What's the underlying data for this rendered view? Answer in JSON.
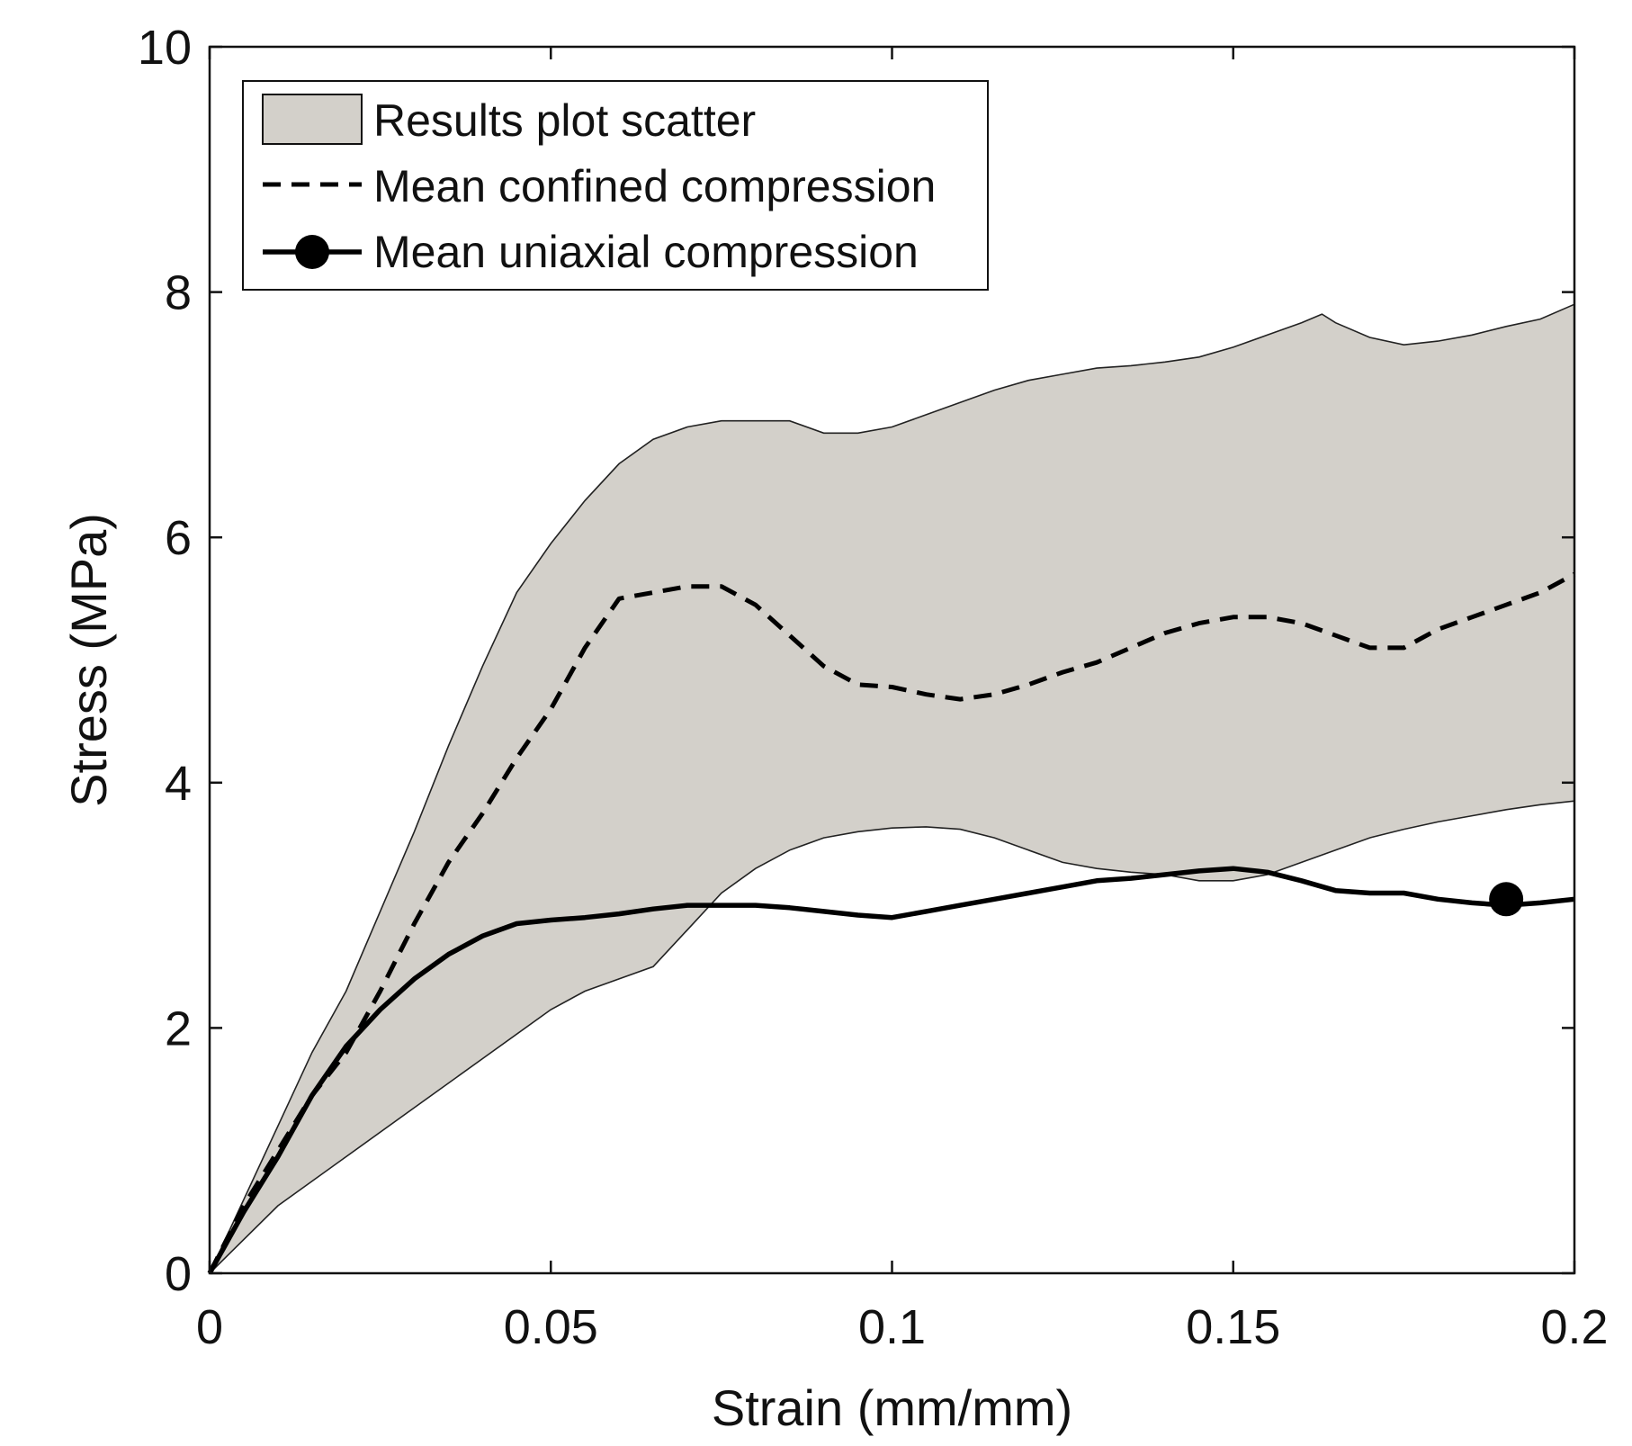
{
  "chart_data": {
    "type": "area",
    "xlabel": "Strain (mm/mm)",
    "ylabel": "Stress (MPa)",
    "xlim": [
      0,
      0.2
    ],
    "ylim": [
      0,
      10
    ],
    "xticks": [
      0,
      0.05,
      0.1,
      0.15,
      0.2
    ],
    "xtick_labels": [
      "0",
      "0.05",
      "0.1",
      "0.15",
      "0.2"
    ],
    "yticks": [
      0,
      2,
      4,
      6,
      8,
      10
    ],
    "ytick_labels": [
      "0",
      "2",
      "4",
      "6",
      "8",
      "10"
    ],
    "legend_position": "top-left",
    "series": [
      {
        "name": "Results plot scatter",
        "kind": "band",
        "color": "#d3d0ca",
        "upper": {
          "x": [
            0,
            0.005,
            0.01,
            0.015,
            0.02,
            0.025,
            0.03,
            0.035,
            0.04,
            0.045,
            0.05,
            0.055,
            0.06,
            0.065,
            0.07,
            0.075,
            0.08,
            0.085,
            0.09,
            0.095,
            0.1,
            0.105,
            0.11,
            0.115,
            0.12,
            0.125,
            0.13,
            0.135,
            0.14,
            0.145,
            0.15,
            0.155,
            0.16,
            0.163,
            0.165,
            0.17,
            0.175,
            0.18,
            0.185,
            0.19,
            0.195,
            0.2
          ],
          "y": [
            0,
            0.6,
            1.2,
            1.8,
            2.3,
            2.95,
            3.6,
            4.3,
            4.95,
            5.55,
            5.95,
            6.3,
            6.6,
            6.8,
            6.9,
            6.95,
            6.95,
            6.95,
            6.85,
            6.85,
            6.9,
            7.0,
            7.1,
            7.2,
            7.28,
            7.33,
            7.38,
            7.4,
            7.43,
            7.47,
            7.55,
            7.65,
            7.75,
            7.82,
            7.75,
            7.63,
            7.57,
            7.6,
            7.65,
            7.72,
            7.78,
            7.9
          ]
        },
        "lower": {
          "x": [
            0,
            0.01,
            0.02,
            0.03,
            0.04,
            0.05,
            0.055,
            0.06,
            0.065,
            0.07,
            0.075,
            0.08,
            0.085,
            0.09,
            0.095,
            0.1,
            0.105,
            0.11,
            0.115,
            0.12,
            0.125,
            0.13,
            0.135,
            0.14,
            0.145,
            0.15,
            0.155,
            0.16,
            0.165,
            0.17,
            0.175,
            0.18,
            0.185,
            0.19,
            0.195,
            0.2
          ],
          "y": [
            0,
            0.55,
            0.95,
            1.35,
            1.75,
            2.15,
            2.3,
            2.4,
            2.5,
            2.8,
            3.1,
            3.3,
            3.45,
            3.55,
            3.6,
            3.63,
            3.64,
            3.62,
            3.55,
            3.45,
            3.35,
            3.3,
            3.27,
            3.25,
            3.2,
            3.2,
            3.25,
            3.35,
            3.45,
            3.55,
            3.62,
            3.68,
            3.73,
            3.78,
            3.82,
            3.85
          ]
        }
      },
      {
        "name": "Mean confined compression",
        "kind": "line",
        "style": "dashed",
        "color": "#000000",
        "x": [
          0,
          0.005,
          0.01,
          0.015,
          0.02,
          0.025,
          0.03,
          0.035,
          0.04,
          0.045,
          0.05,
          0.055,
          0.06,
          0.065,
          0.07,
          0.075,
          0.08,
          0.085,
          0.09,
          0.095,
          0.1,
          0.105,
          0.11,
          0.115,
          0.12,
          0.125,
          0.13,
          0.135,
          0.14,
          0.145,
          0.15,
          0.155,
          0.16,
          0.165,
          0.17,
          0.175,
          0.18,
          0.185,
          0.19,
          0.195,
          0.2
        ],
        "y": [
          0,
          0.55,
          1.0,
          1.45,
          1.8,
          2.3,
          2.85,
          3.35,
          3.75,
          4.2,
          4.6,
          5.1,
          5.5,
          5.55,
          5.6,
          5.6,
          5.45,
          5.2,
          4.95,
          4.8,
          4.78,
          4.72,
          4.68,
          4.72,
          4.8,
          4.9,
          4.98,
          5.1,
          5.22,
          5.3,
          5.35,
          5.35,
          5.3,
          5.2,
          5.1,
          5.1,
          5.25,
          5.35,
          5.45,
          5.55,
          5.7
        ]
      },
      {
        "name": "Mean uniaxial compression",
        "kind": "line",
        "style": "solid",
        "marker": "circle",
        "color": "#000000",
        "marker_points": [
          {
            "x": 0.19,
            "y": 3.05
          }
        ],
        "x": [
          0,
          0.005,
          0.01,
          0.015,
          0.02,
          0.025,
          0.03,
          0.035,
          0.04,
          0.045,
          0.05,
          0.055,
          0.06,
          0.065,
          0.07,
          0.075,
          0.08,
          0.085,
          0.09,
          0.095,
          0.1,
          0.105,
          0.11,
          0.115,
          0.12,
          0.125,
          0.13,
          0.135,
          0.14,
          0.145,
          0.15,
          0.155,
          0.16,
          0.165,
          0.17,
          0.175,
          0.18,
          0.185,
          0.19,
          0.195,
          0.2
        ],
        "y": [
          0,
          0.5,
          0.95,
          1.45,
          1.85,
          2.15,
          2.4,
          2.6,
          2.75,
          2.85,
          2.88,
          2.9,
          2.93,
          2.97,
          3.0,
          3.0,
          3.0,
          2.98,
          2.95,
          2.92,
          2.9,
          2.95,
          3.0,
          3.05,
          3.1,
          3.15,
          3.2,
          3.22,
          3.25,
          3.28,
          3.3,
          3.27,
          3.2,
          3.12,
          3.1,
          3.1,
          3.05,
          3.02,
          3.0,
          3.02,
          3.05
        ]
      }
    ]
  }
}
